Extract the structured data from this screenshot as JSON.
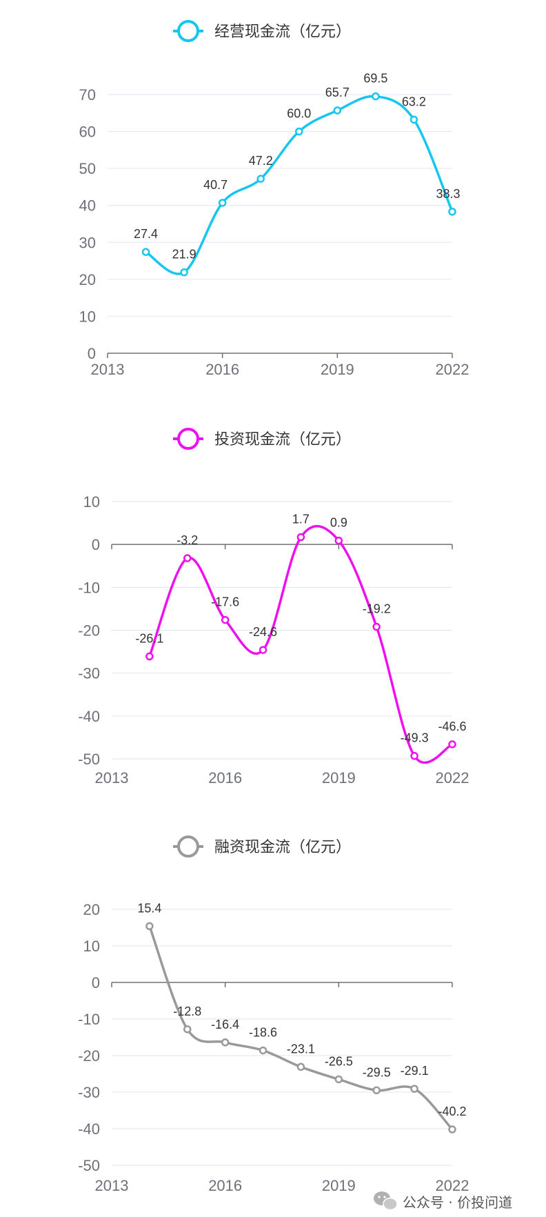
{
  "charts": [
    {
      "legend": "经营现金流（亿元）",
      "color": "#16c6ee",
      "chart_data": {
        "type": "line",
        "smooth": true,
        "x": [
          2014,
          2015,
          2016,
          2017,
          2018,
          2019,
          2020,
          2021,
          2022
        ],
        "values": [
          27.4,
          21.9,
          40.7,
          47.2,
          60.0,
          65.7,
          69.5,
          63.2,
          38.3
        ],
        "data_labels": [
          "27.4",
          "21.9",
          "40.7",
          "47.2",
          "60.0",
          "65.7",
          "69.5",
          "63.2",
          "38.3"
        ],
        "xticks": [
          "2013",
          "2016",
          "2019",
          "2022"
        ],
        "yticks": [
          "0",
          "10",
          "20",
          "30",
          "40",
          "50",
          "60",
          "70"
        ],
        "ylim": [
          0,
          70
        ],
        "xlim": [
          2013,
          2022
        ],
        "legend_position": "top-center",
        "grid": true
      }
    },
    {
      "legend": "投资现金流（亿元）",
      "color": "#ee11ee",
      "chart_data": {
        "type": "line",
        "smooth": true,
        "x": [
          2014,
          2015,
          2016,
          2017,
          2018,
          2019,
          2020,
          2021,
          2022
        ],
        "values": [
          -26.1,
          -3.2,
          -17.6,
          -24.6,
          1.7,
          0.9,
          -19.2,
          -49.3,
          -46.6
        ],
        "data_labels": [
          "-26.1",
          "-3.2",
          "-17.6",
          "-24.6",
          "1.7",
          "0.9",
          "-19.2",
          "-49.3",
          "-46.6"
        ],
        "xticks": [
          "2013",
          "2016",
          "2019",
          "2022"
        ],
        "yticks": [
          "10",
          "0",
          "-10",
          "-20",
          "-30",
          "-40",
          "-50"
        ],
        "ylim": [
          -50,
          10
        ],
        "xlim": [
          2013,
          2022
        ],
        "legend_position": "top-center",
        "grid": true
      }
    },
    {
      "legend": "融资现金流（亿元）",
      "color": "#999999",
      "chart_data": {
        "type": "line",
        "smooth": true,
        "x": [
          2014,
          2015,
          2016,
          2017,
          2018,
          2019,
          2020,
          2021,
          2022
        ],
        "values": [
          15.4,
          -12.8,
          -16.4,
          -18.6,
          -23.1,
          -26.5,
          -29.5,
          -29.1,
          -40.2
        ],
        "data_labels": [
          "15.4",
          "-12.8",
          "-16.4",
          "-18.6",
          "-23.1",
          "-26.5",
          "-29.5",
          "-29.1",
          "-40.2"
        ],
        "xticks": [
          "2013",
          "2016",
          "2019",
          "2022"
        ],
        "yticks": [
          "20",
          "10",
          "0",
          "-10",
          "-20",
          "-30",
          "-40",
          "-50"
        ],
        "ylim": [
          -50,
          20
        ],
        "xlim": [
          2013,
          2022
        ],
        "legend_position": "top-center",
        "grid": true
      }
    }
  ],
  "watermark": {
    "icon": "wechat-icon",
    "text": "公众号 · 价投问道"
  }
}
